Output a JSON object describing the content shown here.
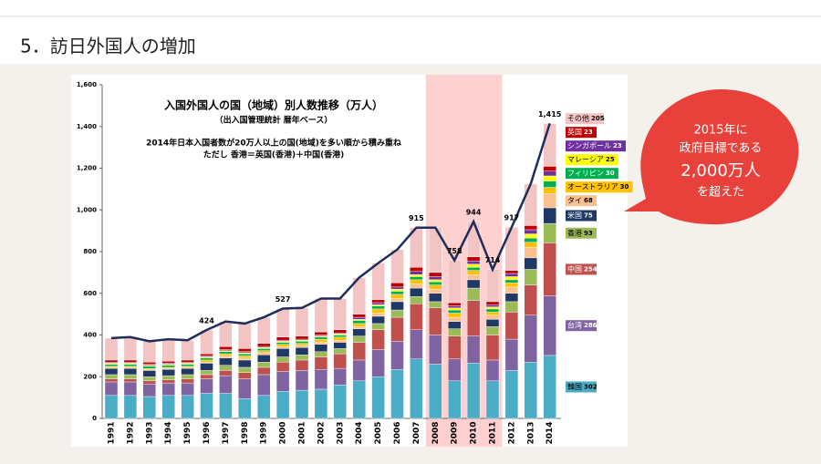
{
  "slide_title": "5．訪日外国人の増加",
  "chart_data": {
    "type": "bar",
    "stacked": true,
    "title": "入国外国人の国（地域）別人数推移（万人）",
    "subtitle": "（出入国管理統計 暦年ベース）",
    "annotations": [
      "2014年日本入国者数が20万人以上の国(地域)を多い順から積み重ね",
      "ただし 香港＝英国(香港)＋中国(香港)"
    ],
    "categories": [
      "1991",
      "1992",
      "1993",
      "1994",
      "1995",
      "1996",
      "1997",
      "1998",
      "1999",
      "2000",
      "2001",
      "2002",
      "2003",
      "2004",
      "2005",
      "2006",
      "2007",
      "2008",
      "2009",
      "2010",
      "2011",
      "2012",
      "2013",
      "2014"
    ],
    "highlight": [
      "2008",
      "2011"
    ],
    "highlight_color": "#ffc4c4",
    "ylim": [
      0,
      1600
    ],
    "yticks": [
      0,
      200,
      400,
      600,
      800,
      {
        "value": 1000,
        "label": "1,000"
      },
      {
        "value": 1200,
        "label": "1,200"
      },
      {
        "value": 1400,
        "label": "1,400"
      },
      {
        "value": 1600,
        "label": "1,600"
      }
    ],
    "grid": false,
    "series": [
      {
        "name": "韓国",
        "color": "#4bacc6",
        "values": [
          110,
          110,
          105,
          110,
          110,
          120,
          120,
          95,
          110,
          130,
          135,
          140,
          160,
          180,
          200,
          235,
          285,
          260,
          180,
          265,
          180,
          230,
          270,
          302
        ]
      },
      {
        "name": "台湾",
        "color": "#8064a2",
        "values": [
          65,
          65,
          60,
          60,
          60,
          70,
          85,
          95,
          100,
          95,
          95,
          95,
          80,
          100,
          130,
          135,
          140,
          140,
          105,
          130,
          100,
          150,
          225,
          286
        ]
      },
      {
        "name": "中国",
        "color": "#c0504d",
        "values": [
          15,
          15,
          15,
          15,
          20,
          20,
          25,
          30,
          35,
          45,
          50,
          60,
          70,
          85,
          95,
          115,
          125,
          130,
          110,
          170,
          120,
          130,
          145,
          254
        ]
      },
      {
        "name": "香港",
        "color": "#9bbb59",
        "values": [
          20,
          20,
          20,
          20,
          20,
          20,
          25,
          25,
          25,
          25,
          25,
          25,
          25,
          30,
          30,
          35,
          35,
          30,
          35,
          60,
          40,
          50,
          75,
          93
        ]
      },
      {
        "name": "米国",
        "color": "#1f3864",
        "values": [
          30,
          30,
          30,
          30,
          30,
          35,
          35,
          35,
          35,
          40,
          35,
          35,
          30,
          35,
          35,
          40,
          40,
          40,
          35,
          40,
          35,
          40,
          55,
          75
        ]
      },
      {
        "name": "タイ",
        "color": "#fac090",
        "values": [
          5,
          5,
          5,
          5,
          5,
          5,
          10,
          10,
          10,
          10,
          10,
          10,
          10,
          10,
          15,
          15,
          20,
          20,
          20,
          25,
          20,
          30,
          50,
          68
        ]
      },
      {
        "name": "オーストラリア",
        "color": "#ffc000",
        "values": [
          5,
          5,
          5,
          5,
          5,
          10,
          10,
          10,
          10,
          10,
          10,
          15,
          15,
          15,
          20,
          20,
          20,
          20,
          20,
          20,
          15,
          20,
          25,
          30
        ]
      },
      {
        "name": "フィリピン",
        "color": "#00b050",
        "values": [
          10,
          10,
          10,
          10,
          10,
          10,
          10,
          10,
          10,
          10,
          10,
          10,
          10,
          15,
          15,
          15,
          15,
          15,
          15,
          15,
          15,
          15,
          20,
          30
        ]
      },
      {
        "name": "マレーシア",
        "color": "#ffff00",
        "values": [
          5,
          5,
          5,
          5,
          5,
          5,
          5,
          5,
          5,
          5,
          5,
          5,
          5,
          5,
          5,
          10,
          10,
          10,
          10,
          15,
          10,
          15,
          20,
          25
        ]
      },
      {
        "name": "シンガポール",
        "color": "#7030a0",
        "values": [
          5,
          5,
          5,
          5,
          5,
          5,
          5,
          5,
          5,
          5,
          5,
          5,
          5,
          10,
          10,
          10,
          15,
          15,
          10,
          15,
          10,
          15,
          20,
          23
        ]
      },
      {
        "name": "英国",
        "color": "#c00000",
        "values": [
          10,
          10,
          10,
          10,
          10,
          10,
          15,
          15,
          15,
          15,
          15,
          15,
          15,
          15,
          15,
          20,
          20,
          20,
          15,
          20,
          15,
          15,
          20,
          23
        ]
      },
      {
        "name": "その他",
        "color": "#f2c4c4",
        "values": [
          105,
          110,
          100,
          105,
          95,
          114,
          120,
          120,
          125,
          137,
          135,
          160,
          150,
          175,
          175,
          160,
          190,
          215,
          203,
          169,
          154,
          207,
          200,
          205
        ]
      }
    ],
    "totals": {
      "color": "#1f2d5a",
      "values": [
        385,
        390,
        370,
        380,
        375,
        424,
        465,
        455,
        485,
        527,
        530,
        575,
        575,
        675,
        745,
        810,
        915,
        915,
        758,
        944,
        714,
        917,
        1125,
        1415
      ],
      "value_labels": [
        null,
        null,
        null,
        null,
        null,
        "424",
        null,
        null,
        null,
        "527",
        null,
        null,
        null,
        null,
        null,
        null,
        "915",
        null,
        "758",
        "944",
        "714",
        "917",
        null,
        "1,415"
      ]
    }
  },
  "callout": [
    "2015年に",
    "政府目標である",
    "2,000万人",
    "を超えた"
  ]
}
